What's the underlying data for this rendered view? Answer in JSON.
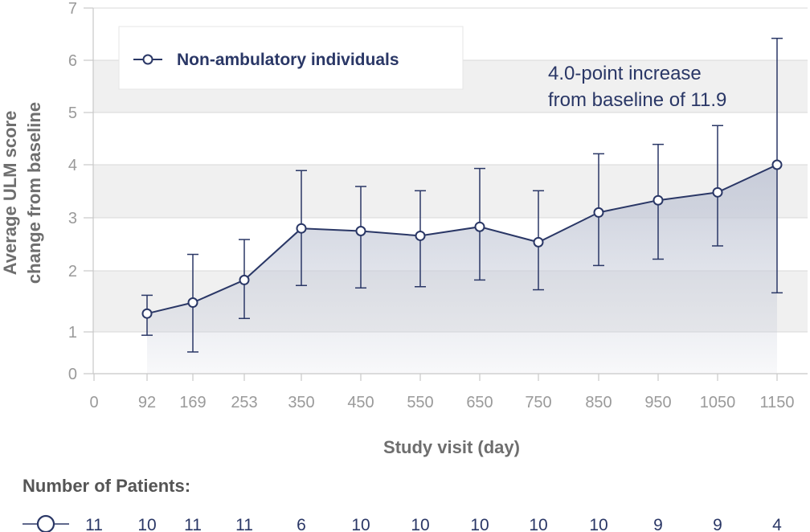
{
  "chart_data": {
    "type": "line",
    "xlabel": "Study visit (day)",
    "ylabel_lines": [
      "Average ULM score",
      "change from baseline"
    ],
    "x_ticks": [
      0,
      92,
      169,
      253,
      350,
      450,
      550,
      650,
      750,
      850,
      950,
      1050,
      1150
    ],
    "y_ticks": [
      0,
      1,
      2,
      3,
      4,
      5,
      6,
      7
    ],
    "ylim": [
      0,
      7
    ],
    "grid": true,
    "legend_position": "top-left",
    "series": [
      {
        "name": "Non-ambulatory individuals",
        "marker": "open-circle",
        "x": [
          92,
          169,
          253,
          350,
          450,
          550,
          650,
          750,
          850,
          950,
          1050,
          1150
        ],
        "y": [
          1.3,
          1.48,
          1.85,
          2.8,
          2.75,
          2.66,
          2.83,
          2.54,
          3.1,
          3.33,
          3.48,
          4.0
        ],
        "error_low": [
          0.92,
          0.52,
          1.22,
          1.76,
          1.72,
          1.74,
          1.85,
          1.69,
          2.1,
          2.22,
          2.47,
          1.64
        ],
        "error_high": [
          1.6,
          2.31,
          2.59,
          3.89,
          3.59,
          3.51,
          3.93,
          3.51,
          4.21,
          4.39,
          4.75,
          6.42
        ]
      }
    ],
    "annotation_lines": [
      "4.0-point increase",
      "from baseline of 11.9"
    ],
    "colors": {
      "series": "#2a3766",
      "band": "#f0f0f0",
      "grid": "#d9d9d9",
      "area": "#c5cad8"
    }
  },
  "patients": {
    "title": "Number of Patients:",
    "marker_icon": "open-circle-icon",
    "counts": [
      11,
      10,
      11,
      11,
      6,
      10,
      10,
      10,
      10,
      10,
      9,
      9,
      4
    ]
  }
}
